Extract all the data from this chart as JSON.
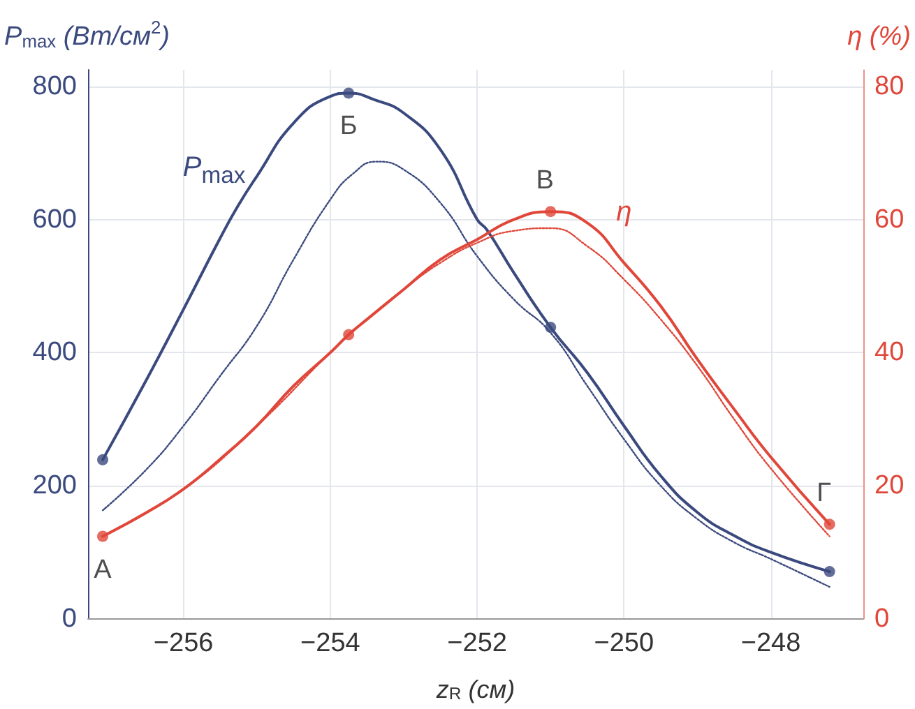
{
  "chart_data": {
    "type": "line",
    "xlabel": "z$_{R}$ (см)",
    "ylabel": "P$_{max}$ (Вт/см$^{2}$)",
    "y2label": "η (%)",
    "xlim": [
      -257.3,
      -246.74
    ],
    "xticks": [
      -256,
      -254,
      -252,
      -250,
      -248
    ],
    "ylim": [
      0,
      825
    ],
    "yticks": [
      0,
      200,
      400,
      600,
      800
    ],
    "y2lim": [
      0,
      82.5
    ],
    "y2ticks": [
      0,
      20,
      40,
      60,
      80
    ],
    "grid": true,
    "series": [
      {
        "name": "P$_{max}$",
        "color": "#3b4a7e",
        "line_style": "solid",
        "x": [
          -257.1,
          -256.5,
          -256,
          -255.5,
          -255.26,
          -255,
          -254.5,
          -254,
          -253.75,
          -253.4,
          -253,
          -252.5,
          -252,
          -251.87,
          -251.5,
          -251,
          -250.5,
          -250,
          -249.5,
          -249,
          -248.5,
          -248,
          -247.2
        ],
        "values": [
          239,
          360,
          465,
          572,
          620,
          665,
          745,
          785,
          790,
          780,
          760,
          705,
          600,
          585,
          520,
          438,
          370,
          290,
          215,
          160,
          125,
          100,
          71
        ]
      },
      {
        "color": "#3b4a7e",
        "line_style": "dotted",
        "x": [
          -257.1,
          -256.5,
          -256,
          -255.5,
          -255,
          -254.5,
          -254,
          -253.7,
          -253.37,
          -253,
          -252.5,
          -252,
          -251.5,
          -251,
          -250.5,
          -250,
          -249.5,
          -249,
          -248.5,
          -248,
          -247.2
        ],
        "values": [
          163,
          225,
          290,
          365,
          440,
          540,
          630,
          668,
          687,
          675,
          625,
          545,
          480,
          430,
          350,
          270,
          200,
          150,
          115,
          90,
          48
        ]
      },
      {
        "name": "η",
        "axis": "y2",
        "color": "#e0473a",
        "line_style": "solid",
        "x": [
          -257.1,
          -256.5,
          -256,
          -255.5,
          -255,
          -254.5,
          -254,
          -253.75,
          -253.5,
          -253,
          -252.5,
          -252,
          -251.5,
          -251,
          -250.5,
          -250,
          -249.5,
          -249,
          -248.5,
          -248,
          -247.2
        ],
        "values": [
          12.4,
          16,
          19.5,
          24,
          29,
          35,
          40,
          42.7,
          45,
          49.5,
          54,
          57,
          60,
          61.2,
          59.5,
          53.5,
          47,
          39,
          31.5,
          24.3,
          14.2
        ]
      },
      {
        "axis": "y2",
        "color": "#e0473a",
        "line_style": "dotted",
        "x": [
          -257.1,
          -256,
          -255,
          -254,
          -253.5,
          -253,
          -252.5,
          -252,
          -251.5,
          -251,
          -250.5,
          -250,
          -249.5,
          -249,
          -248.5,
          -248,
          -247.2
        ],
        "values": [
          12.4,
          19.5,
          29,
          40,
          45,
          49.5,
          53.5,
          56.5,
          58.3,
          58.7,
          56,
          51,
          45,
          38,
          30,
          22.6,
          12.4
        ]
      },
      {
        "type": "scatter",
        "marker": "circle",
        "color": "#3b4a7e",
        "x": [
          -257.1,
          -253.75,
          -251.0,
          -247.2
        ],
        "values": [
          239,
          790,
          438,
          71
        ]
      },
      {
        "type": "scatter",
        "marker": "circle",
        "axis": "y2",
        "color": "#e0473a",
        "x": [
          -257.1,
          -253.75,
          -251.0,
          -247.2
        ],
        "values": [
          12.4,
          42.7,
          61.2,
          14.2
        ]
      }
    ],
    "annotations": [
      {
        "text": "А",
        "x": -257.1,
        "y": 124
      },
      {
        "text": "Б",
        "x": -253.75,
        "y": 790
      },
      {
        "text": "В",
        "x": -251.0,
        "y": 612
      },
      {
        "text": "Г",
        "x": -247.2,
        "y": 142
      }
    ]
  }
}
